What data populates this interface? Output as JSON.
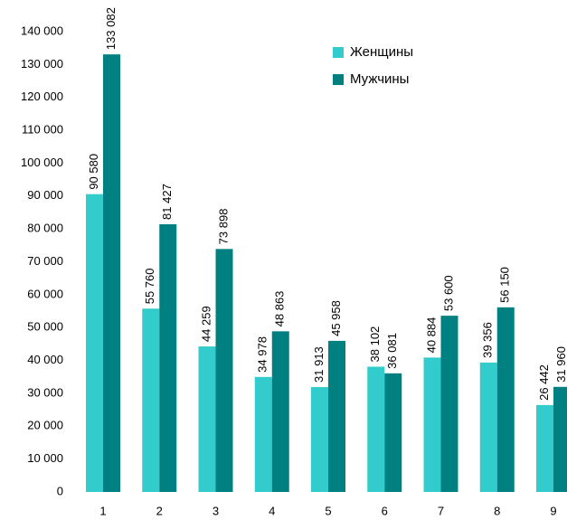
{
  "chart_data": {
    "type": "bar",
    "categories": [
      "1",
      "2",
      "3",
      "4",
      "5",
      "6",
      "7",
      "8",
      "9"
    ],
    "series": [
      {
        "name": "Женщины",
        "color": "#33cccc",
        "values": [
          90580,
          55760,
          44259,
          34978,
          31913,
          38102,
          40884,
          39356,
          26442
        ],
        "value_labels": [
          "90 580",
          "55 760",
          "44 259",
          "34 978",
          "31 913",
          "38 102",
          "40 884",
          "39 356",
          "26 442"
        ]
      },
      {
        "name": "Мужчины",
        "color": "#008080",
        "values": [
          133082,
          81427,
          73898,
          48863,
          45958,
          36081,
          53600,
          56150,
          31960
        ],
        "value_labels": [
          "133 082",
          "81 427",
          "73 898",
          "48 863",
          "45 958",
          "36 081",
          "53 600",
          "56 150",
          "31 960"
        ]
      }
    ],
    "ylim": [
      0,
      140000
    ],
    "yticks": [
      0,
      {
        "value": 10000,
        "label": "10 000"
      },
      {
        "value": 20000,
        "label": "20 000"
      },
      {
        "value": 30000,
        "label": "30 000"
      },
      {
        "value": 40000,
        "label": "40 000"
      },
      {
        "value": 50000,
        "label": "50 000"
      },
      {
        "value": 60000,
        "label": "60 000"
      },
      {
        "value": 70000,
        "label": "70 000"
      },
      {
        "value": 80000,
        "label": "80 000"
      },
      {
        "value": 90000,
        "label": "90 000"
      },
      {
        "value": 100000,
        "label": "100 000"
      },
      {
        "value": 110000,
        "label": "110 000"
      },
      {
        "value": 120000,
        "label": "120 000"
      },
      {
        "value": 130000,
        "label": "130 000"
      },
      {
        "value": 140000,
        "label": "140 000"
      }
    ],
    "legend": "top-right",
    "grid": false
  }
}
